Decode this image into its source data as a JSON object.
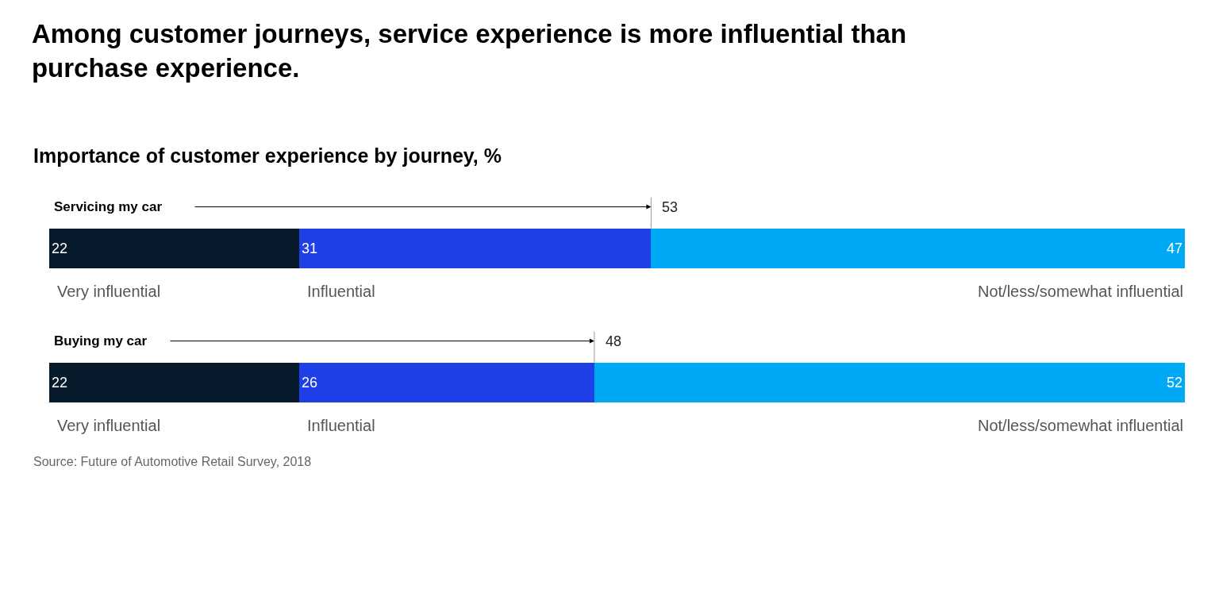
{
  "chart_data": {
    "type": "bar",
    "orientation": "horizontal",
    "stacked": true,
    "title": "Among customer journeys, service experience is more influential than purchase experience.",
    "subtitle": "Importance of customer experience by journey, %",
    "categories": [
      "Servicing my car",
      "Buying my car"
    ],
    "xlim": [
      0,
      100
    ],
    "tick_labels": "y",
    "legend": false,
    "data_labels": true,
    "series": [
      {
        "name": "Very influential",
        "color": "#061a2c",
        "values": [
          22,
          22
        ]
      },
      {
        "name": "Influential",
        "color": "#1f40e6",
        "values": [
          31,
          26
        ]
      },
      {
        "name": "Not/less/somewhat influential",
        "color": "#00a9f4",
        "values": [
          47,
          52
        ]
      }
    ],
    "annotations": [
      "53",
      "48",
      "Source: Future of Automotive Retail Survey, 2018"
    ]
  }
}
